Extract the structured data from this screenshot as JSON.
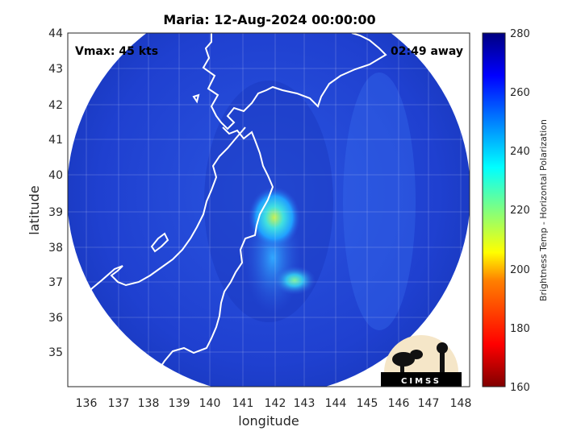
{
  "title": "Maria: 12-Aug-2024 00:00:00",
  "annotations": {
    "vmax": "Vmax: 45 kts",
    "time_away": "02:49 away"
  },
  "xlabel": "longitude",
  "ylabel": "latitude",
  "x_ticks": [
    "136",
    "137",
    "138",
    "139",
    "140",
    "141",
    "142",
    "143",
    "144",
    "145",
    "146",
    "147",
    "148"
  ],
  "y_ticks": [
    "35",
    "36",
    "37",
    "38",
    "39",
    "40",
    "41",
    "42",
    "43",
    "44"
  ],
  "colorbar": {
    "label": "Brightness Temp - Horizontal Polarization",
    "ticks": [
      "160",
      "180",
      "200",
      "220",
      "240",
      "260",
      "280"
    ],
    "range": [
      160,
      280
    ],
    "colors": [
      "#800000",
      "#ff0000",
      "#ff8000",
      "#ffff00",
      "#80ff80",
      "#00ffff",
      "#0080ff",
      "#0000ff",
      "#000080"
    ]
  },
  "logo": {
    "text": "CIMSS"
  },
  "map": {
    "lon_range": [
      135.4,
      148.3
    ],
    "lat_range": [
      34.1,
      44.0
    ],
    "scan_center": {
      "lon": 142.2,
      "lat": 39.1
    },
    "background_color": "#1f3fd0",
    "features": [
      {
        "name": "convection-core",
        "lon": 142.0,
        "lat": 38.7,
        "value": 212
      },
      {
        "name": "convection-south",
        "lon": 142.8,
        "lat": 37.0,
        "value": 222
      },
      {
        "name": "outer-band",
        "lon": 142.3,
        "lat": 39.5,
        "value": 238
      }
    ]
  }
}
